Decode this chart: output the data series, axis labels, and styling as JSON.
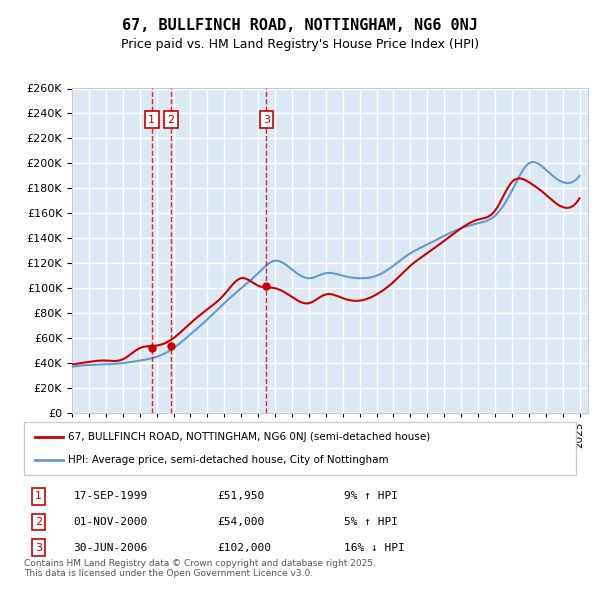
{
  "title": "67, BULLFINCH ROAD, NOTTINGHAM, NG6 0NJ",
  "subtitle": "Price paid vs. HM Land Registry's House Price Index (HPI)",
  "ylabel": "",
  "ylim": [
    0,
    260000
  ],
  "yticks": [
    0,
    20000,
    40000,
    60000,
    80000,
    100000,
    120000,
    140000,
    160000,
    180000,
    200000,
    220000,
    240000,
    260000
  ],
  "xlim_start": 1995.0,
  "xlim_end": 2025.5,
  "background_color": "#dce9f5",
  "plot_bg": "#dce9f5",
  "grid_color": "#ffffff",
  "line_color_red": "#cc0000",
  "line_color_blue": "#6699cc",
  "sale_dates": [
    1999.71,
    2000.83,
    2006.49
  ],
  "sale_prices": [
    51950,
    54000,
    102000
  ],
  "sale_labels": [
    "1",
    "2",
    "3"
  ],
  "legend_red": "67, BULLFINCH ROAD, NOTTINGHAM, NG6 0NJ (semi-detached house)",
  "legend_blue": "HPI: Average price, semi-detached house, City of Nottingham",
  "table_rows": [
    {
      "num": "1",
      "date": "17-SEP-1999",
      "price": "£51,950",
      "change": "9% ↑ HPI"
    },
    {
      "num": "2",
      "date": "01-NOV-2000",
      "price": "£54,000",
      "change": "5% ↑ HPI"
    },
    {
      "num": "3",
      "date": "30-JUN-2006",
      "price": "£102,000",
      "change": "16% ↓ HPI"
    }
  ],
  "footer": "Contains HM Land Registry data © Crown copyright and database right 2025.\nThis data is licensed under the Open Government Licence v3.0.",
  "hpi_years": [
    1995,
    1996,
    1997,
    1998,
    1999,
    2000,
    2001,
    2002,
    2003,
    2004,
    2005,
    2006,
    2007,
    2008,
    2009,
    2010,
    2011,
    2012,
    2013,
    2014,
    2015,
    2016,
    2017,
    2018,
    2019,
    2020,
    2021,
    2022,
    2023,
    2024,
    2025
  ],
  "hpi_values": [
    37000,
    38500,
    39000,
    40000,
    42000,
    45000,
    52000,
    63000,
    75000,
    88000,
    100000,
    112000,
    122000,
    115000,
    108000,
    112000,
    110000,
    108000,
    110000,
    118000,
    128000,
    135000,
    142000,
    148000,
    152000,
    158000,
    178000,
    200000,
    195000,
    185000,
    190000
  ],
  "red_years": [
    1995,
    1996,
    1997,
    1998,
    1999,
    2000,
    2001,
    2002,
    2003,
    2004,
    2005,
    2006,
    2007,
    2008,
    2009,
    2010,
    2011,
    2012,
    2013,
    2014,
    2015,
    2016,
    2017,
    2018,
    2019,
    2020,
    2021,
    2022,
    2023,
    2024,
    2025
  ],
  "red_values": [
    39000,
    41000,
    42000,
    43000,
    51950,
    54000,
    60000,
    72000,
    83000,
    95000,
    108000,
    102000,
    100000,
    93000,
    88000,
    95000,
    92000,
    90000,
    95000,
    105000,
    118000,
    128000,
    138000,
    148000,
    155000,
    162000,
    185000,
    185000,
    175000,
    165000,
    172000
  ]
}
